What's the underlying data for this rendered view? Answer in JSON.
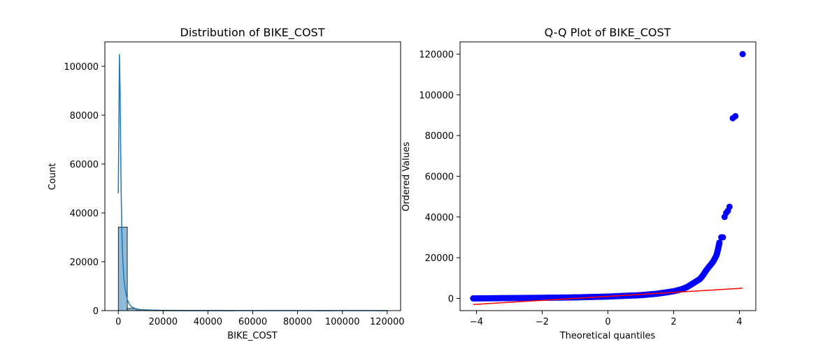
{
  "chart_data": [
    {
      "type": "histogram",
      "title": "Distribution of BIKE_COST",
      "xlabel": "BIKE_COST",
      "ylabel": "Count",
      "xlim": [
        -6000,
        126000
      ],
      "ylim": [
        0,
        110000
      ],
      "xticks": [
        0,
        20000,
        40000,
        60000,
        80000,
        100000,
        120000
      ],
      "yticks": [
        0,
        20000,
        40000,
        60000,
        80000,
        100000
      ],
      "bar_color": "#1f77b4",
      "bin_edges": [
        0,
        4000,
        8000,
        12000,
        16000,
        20000,
        24000,
        28000,
        32000,
        36000,
        40000,
        44000,
        48000,
        52000,
        56000,
        60000,
        64000,
        68000,
        72000,
        76000,
        80000,
        84000,
        88000,
        92000,
        96000,
        100000,
        104000,
        108000,
        112000,
        116000,
        120000
      ],
      "counts": [
        34200,
        900,
        120,
        40,
        15,
        8,
        5,
        3,
        3,
        2,
        4,
        2,
        1,
        0,
        0,
        0,
        0,
        0,
        0,
        0,
        0,
        0,
        1,
        1,
        0,
        0,
        0,
        0,
        0,
        1
      ],
      "kde": {
        "x": [
          0,
          200,
          500,
          800,
          1000,
          1300,
          1600,
          2000,
          2500,
          3000,
          4000,
          5000,
          6000,
          8000,
          10000,
          15000,
          20000,
          30000,
          40000,
          60000,
          80000,
          100000,
          120000
        ],
        "y": [
          48000,
          72000,
          105000,
          90000,
          70000,
          47000,
          32000,
          21000,
          13000,
          9000,
          4500,
          2500,
          1500,
          700,
          400,
          200,
          100,
          50,
          30,
          10,
          5,
          2,
          0
        ]
      }
    },
    {
      "type": "scatter",
      "title": "Q-Q Plot of BIKE_COST",
      "xlabel": "Theoretical quantiles",
      "ylabel": "Ordered Values",
      "xlim": [
        -4.5,
        4.5
      ],
      "ylim": [
        -6000,
        126000
      ],
      "xticks": [
        -4,
        -2,
        0,
        2,
        4
      ],
      "xtick_labels": [
        "−4",
        "−2",
        "0",
        "2",
        "4"
      ],
      "yticks": [
        0,
        20000,
        40000,
        60000,
        80000,
        100000,
        120000
      ],
      "point_color": "#0000ff",
      "line_color": "#ff0000",
      "fit_line": {
        "x": [
          -4.1,
          4.1
        ],
        "y": [
          -3000,
          5000
        ]
      },
      "curve": {
        "x": [
          -4.1,
          -3.5,
          -3.0,
          -2.0,
          -1.0,
          0.0,
          1.0,
          1.5,
          2.0,
          2.2,
          2.4,
          2.6,
          2.8,
          2.9,
          3.0,
          3.1,
          3.2,
          3.3,
          3.35,
          3.4
        ],
        "y": [
          0,
          80,
          150,
          300,
          500,
          900,
          1600,
          2300,
          3500,
          4300,
          5500,
          7500,
          9500,
          11500,
          14000,
          16000,
          18000,
          21000,
          24000,
          28000
        ]
      },
      "points": {
        "x": [
          3.45,
          3.5,
          3.55,
          3.6,
          3.65,
          3.7,
          3.8,
          3.88,
          4.1
        ],
        "y": [
          30000,
          30000,
          40000,
          42000,
          43000,
          45000,
          88500,
          89500,
          120000
        ]
      }
    }
  ]
}
